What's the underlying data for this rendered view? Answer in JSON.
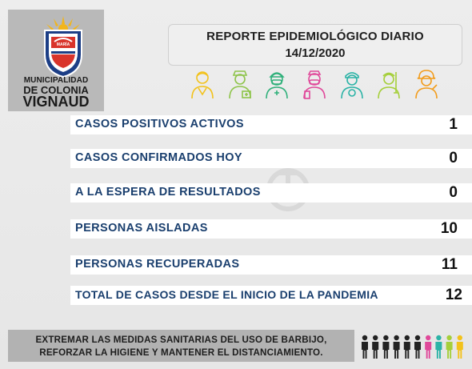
{
  "logo": {
    "seal_text": "MARÍA",
    "line1": "MUNICIPALIDAD",
    "line2": "DE COLONIA",
    "line3": "VIGNAUD"
  },
  "header": {
    "title": "REPORTE EPIDEMIOLÓGICO DIARIO",
    "date": "14/12/2020"
  },
  "stats": [
    {
      "label": "CASOS POSITIVOS ACTIVOS",
      "value": "1"
    },
    {
      "label": "CASOS CONFIRMADOS HOY",
      "value": "0"
    },
    {
      "label": "A LA ESPERA DE RESULTADOS",
      "value": "0"
    },
    {
      "label": "PERSONAS AISLADAS",
      "value": "10"
    },
    {
      "label": "PERSONAS RECUPERADAS",
      "value": "11"
    },
    {
      "label": "TOTAL DE CASOS DESDE EL INICIO DE LA PANDEMIA",
      "value": "12"
    }
  ],
  "footer": {
    "line1": "EXTREMAR LAS MEDIDAS SANITARIAS DEL USO DE BARBIJO,",
    "line2": "REFORZAR LA HIGIENE Y MANTENER EL DISTANCIAMIENTO."
  },
  "colors": {
    "label_blue": "#1a3f6e",
    "worker_palette": [
      "#f2c21b",
      "#8ec44a",
      "#2fb07a",
      "#e0489a",
      "#2bb3a6",
      "#a5cf3a",
      "#f29c1b"
    ],
    "people_palette": [
      "#222222",
      "#222222",
      "#222222",
      "#222222",
      "#222222",
      "#222222",
      "#e0489a",
      "#2bb3a6",
      "#a5cf3a",
      "#f2c21b"
    ]
  },
  "icons": {
    "seal": "municipal-coat-of-arms-icon",
    "workers": [
      "worker-doctor-icon",
      "worker-nurse-icon",
      "worker-medic-mask-icon",
      "worker-nurse-mask-icon",
      "worker-paramedic-icon",
      "worker-cleaner-icon",
      "worker-firefighter-icon"
    ],
    "people": "people-row-icon",
    "watermark": "faded-logo-watermark-icon"
  }
}
